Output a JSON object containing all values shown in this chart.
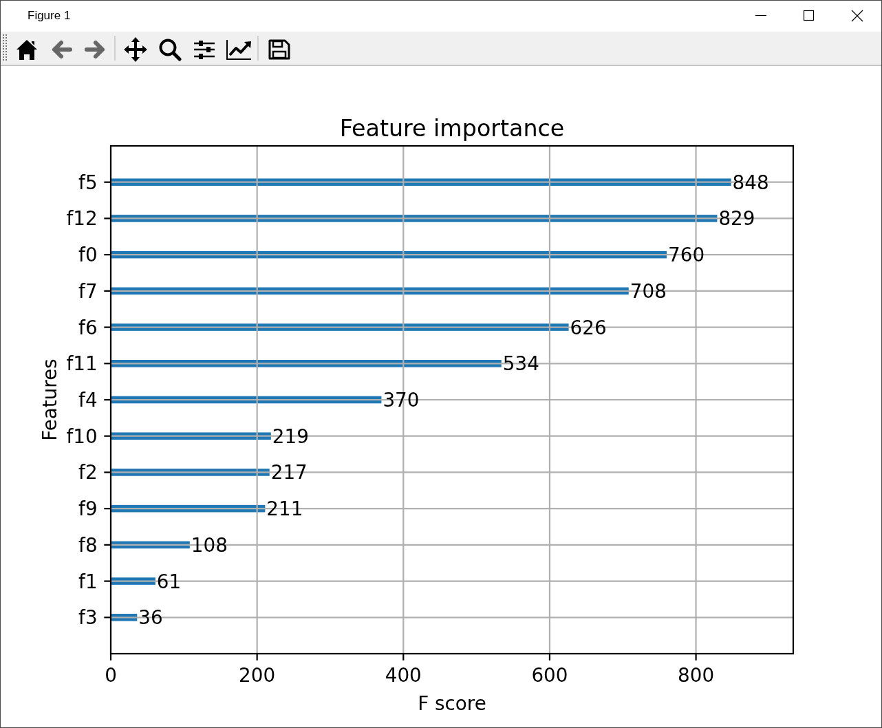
{
  "chart_data": {
    "type": "bar",
    "orientation": "horizontal",
    "title": "Feature importance",
    "xlabel": "F score",
    "ylabel": "Features",
    "categories": [
      "f5",
      "f12",
      "f0",
      "f7",
      "f6",
      "f11",
      "f4",
      "f10",
      "f2",
      "f9",
      "f8",
      "f1",
      "f3"
    ],
    "values": [
      848,
      829,
      760,
      708,
      626,
      534,
      370,
      219,
      217,
      211,
      108,
      61,
      36
    ],
    "color": "#1f77b4",
    "xlim": [
      0,
      933
    ],
    "xticks": [
      0,
      200,
      400,
      600,
      800
    ],
    "grid": true,
    "data_labels": true,
    "annotations": [
      "Figure 1"
    ]
  }
}
